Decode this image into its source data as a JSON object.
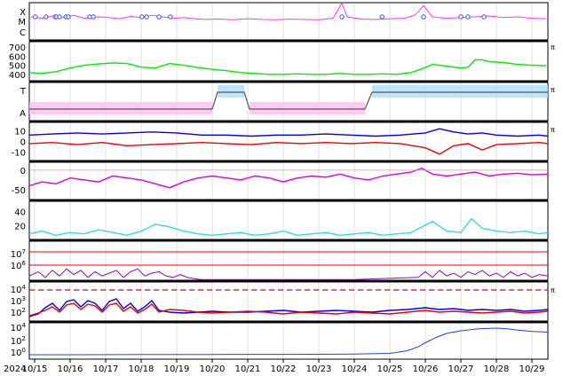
{
  "chart_data": [
    {
      "type": "line",
      "panel": "xray-flare-class",
      "yticks": [
        "X",
        "M",
        "C"
      ],
      "series": [
        {
          "color": "#ff33ff",
          "x": [
            14.9,
            15.2,
            15.5,
            15.8,
            16.1,
            16.4,
            16.8,
            17.1,
            17.4,
            17.7,
            18.0,
            18.3,
            18.6,
            18.9,
            19.2,
            19.5,
            19.8,
            20.2,
            20.6,
            21.0,
            21.4,
            21.8,
            22.2,
            22.6,
            23.0,
            23.4,
            23.65,
            23.8,
            24.2,
            24.6,
            25.0,
            25.4,
            25.7,
            25.95,
            26.2,
            26.6,
            27.0,
            27.4,
            27.8,
            28.2,
            28.6,
            29.0,
            29.4
          ],
          "y": [
            0.62,
            0.58,
            0.64,
            0.6,
            0.66,
            0.58,
            0.62,
            0.6,
            0.57,
            0.63,
            0.6,
            0.66,
            0.62,
            0.58,
            0.6,
            0.57,
            0.55,
            0.56,
            0.54,
            0.57,
            0.55,
            0.54,
            0.56,
            0.55,
            0.54,
            0.58,
            0.98,
            0.62,
            0.56,
            0.55,
            0.57,
            0.58,
            0.66,
            0.92,
            0.62,
            0.58,
            0.6,
            0.62,
            0.64,
            0.6,
            0.62,
            0.58,
            0.57
          ]
        }
      ],
      "flare_markers": [
        15.02,
        15.32,
        15.58,
        15.62,
        15.7,
        15.88,
        15.95,
        16.55,
        16.65,
        18.02,
        18.15,
        18.5,
        18.82,
        23.65,
        24.78,
        25.95,
        27.0,
        27.2,
        27.65
      ]
    },
    {
      "type": "line",
      "panel": "solar-wind-speed",
      "yticks": [
        "700",
        "600",
        "500",
        "400"
      ],
      "ylim": [
        330,
        760
      ],
      "series": [
        {
          "color": "#00ee00",
          "x": [
            14.85,
            15.2,
            15.6,
            16.0,
            16.4,
            16.8,
            17.2,
            17.6,
            18.0,
            18.4,
            18.8,
            19.2,
            19.6,
            20.0,
            20.4,
            20.8,
            21.2,
            21.6,
            22.0,
            22.4,
            22.8,
            23.2,
            23.6,
            24.0,
            24.4,
            24.8,
            25.2,
            25.6,
            25.9,
            26.2,
            26.6,
            27.0,
            27.2,
            27.4,
            27.6,
            27.8,
            28.2,
            28.6,
            29.0,
            29.4
          ],
          "y": [
            420,
            410,
            430,
            470,
            500,
            515,
            525,
            520,
            480,
            470,
            520,
            500,
            475,
            455,
            440,
            420,
            410,
            400,
            400,
            405,
            400,
            400,
            410,
            400,
            400,
            405,
            400,
            420,
            460,
            510,
            490,
            470,
            480,
            560,
            560,
            540,
            530,
            510,
            500,
            495
          ]
        }
      ]
    },
    {
      "type": "line",
      "panel": "imf-sector",
      "yticks": [
        "T",
        "A"
      ],
      "series": [
        {
          "color": "#555555",
          "x": [
            14.85,
            20.0,
            20.15,
            20.9,
            21.05,
            24.3,
            24.5,
            29.45
          ],
          "y": [
            0,
            0,
            1,
            1,
            0,
            0,
            1,
            1
          ]
        }
      ]
    },
    {
      "type": "line",
      "panel": "imf-components",
      "yticks": [
        "10",
        "0",
        "-10"
      ],
      "ylim": [
        -18,
        18
      ],
      "series": [
        {
          "color": "#0000ee",
          "x": [
            14.85,
            15.5,
            16.2,
            16.9,
            17.6,
            18.3,
            19.0,
            19.7,
            20.4,
            21.1,
            21.8,
            22.5,
            23.2,
            23.9,
            24.6,
            25.3,
            26.0,
            26.4,
            26.8,
            27.2,
            27.6,
            28.0,
            28.6,
            29.2,
            29.45
          ],
          "y": [
            6,
            7,
            8,
            7,
            8,
            9,
            8,
            6,
            6,
            5,
            6,
            6,
            7,
            6,
            5,
            6,
            8,
            12,
            9,
            7,
            8,
            6,
            5,
            6,
            5
          ]
        },
        {
          "color": "#ee0000",
          "x": [
            14.85,
            15.5,
            16.2,
            16.9,
            17.6,
            18.3,
            19.0,
            19.7,
            20.4,
            21.1,
            21.8,
            22.5,
            23.2,
            23.9,
            24.6,
            25.3,
            26.0,
            26.4,
            26.8,
            27.2,
            27.6,
            28.0,
            28.6,
            29.2,
            29.45
          ],
          "y": [
            -2,
            -1,
            -3,
            -1,
            -4,
            -3,
            -2,
            -1,
            -2,
            -3,
            -1,
            -2,
            -1,
            -2,
            -1,
            -2,
            -6,
            -12,
            -4,
            -2,
            -8,
            -3,
            -2,
            -1,
            -2
          ]
        }
      ]
    },
    {
      "type": "line",
      "panel": "dst-index",
      "yticks": [
        "0",
        "-50"
      ],
      "ylim": [
        -75,
        20
      ],
      "series": [
        {
          "color": "#dd00dd",
          "x": [
            14.85,
            15.2,
            15.6,
            16.0,
            16.4,
            16.8,
            17.2,
            17.6,
            18.0,
            18.4,
            18.8,
            19.2,
            19.6,
            20.0,
            20.4,
            20.8,
            21.2,
            21.6,
            22.0,
            22.4,
            22.8,
            23.2,
            23.6,
            24.0,
            24.4,
            24.8,
            25.2,
            25.6,
            25.9,
            26.2,
            26.6,
            27.0,
            27.4,
            27.8,
            28.2,
            28.6,
            29.0,
            29.45
          ],
          "y": [
            -40,
            -30,
            -35,
            -20,
            -25,
            -30,
            -15,
            -20,
            -25,
            -35,
            -45,
            -30,
            -20,
            -15,
            -20,
            -25,
            -15,
            -20,
            -30,
            -20,
            -15,
            -18,
            -10,
            -20,
            -25,
            -15,
            -10,
            -5,
            5,
            -10,
            -15,
            -10,
            -5,
            -15,
            -10,
            -8,
            -12,
            -10
          ]
        }
      ]
    },
    {
      "type": "line",
      "panel": "kp-index",
      "yticks": [
        "40",
        "20"
      ],
      "ylim": [
        0,
        55
      ],
      "series": [
        {
          "color": "#33dddd",
          "x": [
            14.85,
            15.2,
            15.6,
            16.0,
            16.4,
            16.8,
            17.2,
            17.6,
            18.0,
            18.4,
            18.8,
            19.2,
            19.6,
            20.0,
            20.4,
            20.8,
            21.2,
            21.6,
            22.0,
            22.4,
            22.8,
            23.2,
            23.6,
            24.0,
            24.4,
            24.8,
            25.2,
            25.6,
            25.9,
            26.2,
            26.6,
            27.0,
            27.3,
            27.6,
            28.0,
            28.4,
            28.8,
            29.2,
            29.45
          ],
          "y": [
            8,
            12,
            6,
            10,
            8,
            14,
            10,
            6,
            12,
            22,
            18,
            12,
            8,
            6,
            8,
            10,
            6,
            8,
            12,
            6,
            8,
            10,
            6,
            8,
            10,
            6,
            8,
            10,
            18,
            26,
            12,
            10,
            30,
            16,
            12,
            10,
            12,
            8,
            10
          ]
        }
      ]
    },
    {
      "type": "line",
      "panel": "proton-flux",
      "yticks": [
        "10^7",
        "10^6"
      ],
      "series": [
        {
          "color": "#9900cc",
          "x": [
            14.85,
            15.1,
            15.3,
            15.5,
            15.7,
            15.9,
            16.1,
            16.3,
            16.5,
            16.7,
            16.9,
            17.1,
            17.3,
            17.5,
            17.7,
            17.9,
            18.1,
            18.3,
            18.5,
            18.7,
            18.9,
            19.1,
            19.3,
            19.5,
            19.7,
            20.0,
            22.0,
            24.0,
            25.8,
            26.0,
            26.2,
            26.4,
            26.6,
            26.8,
            27.0,
            27.2,
            27.4,
            27.6,
            27.8,
            28.0,
            28.2,
            28.4,
            28.6,
            28.8,
            29.0,
            29.2,
            29.45
          ],
          "y": [
            0.3,
            0.6,
            0.2,
            0.7,
            0.3,
            0.8,
            0.4,
            0.7,
            0.2,
            0.6,
            0.3,
            0.5,
            0.7,
            0.2,
            0.6,
            0.8,
            0.3,
            0.5,
            0.6,
            0.3,
            0.2,
            0.4,
            0.2,
            0.1,
            0.05,
            0.05,
            0.05,
            0.05,
            0.2,
            0.6,
            0.2,
            0.7,
            0.3,
            0.5,
            0.2,
            0.6,
            0.4,
            0.7,
            0.3,
            0.5,
            0.2,
            0.6,
            0.3,
            0.5,
            0.2,
            0.4,
            0.3
          ]
        }
      ]
    },
    {
      "type": "line",
      "panel": "electron-flux",
      "yticks": [
        "10^4",
        "10^3",
        "10^2"
      ],
      "series": [
        {
          "color": "#0000ee",
          "x": [
            14.85,
            15.1,
            15.3,
            15.5,
            15.7,
            15.9,
            16.1,
            16.3,
            16.5,
            16.7,
            16.9,
            17.1,
            17.3,
            17.5,
            17.7,
            17.9,
            18.1,
            18.3,
            18.5,
            18.8,
            19.2,
            19.6,
            20.0,
            20.5,
            21.0,
            21.5,
            22.0,
            22.5,
            23.0,
            23.5,
            24.0,
            24.5,
            25.0,
            25.5,
            26.0,
            26.4,
            26.8,
            27.2,
            27.6,
            28.0,
            28.4,
            28.8,
            29.2,
            29.45
          ],
          "y": [
            0.5,
            0.8,
            1.5,
            2.0,
            1.2,
            2.2,
            2.4,
            1.6,
            2.3,
            2.0,
            1.2,
            2.2,
            2.5,
            1.4,
            2.0,
            1.1,
            1.6,
            2.3,
            1.2,
            1.0,
            0.9,
            1.0,
            1.1,
            1.0,
            1.0,
            1.1,
            1.2,
            1.0,
            1.1,
            1.2,
            1.1,
            1.0,
            1.2,
            1.3,
            1.5,
            1.3,
            1.4,
            1.2,
            1.3,
            1.2,
            1.3,
            1.1,
            1.2,
            1.3
          ]
        },
        {
          "color": "#ee0000",
          "x": [
            14.85,
            15.1,
            15.3,
            15.5,
            15.7,
            15.9,
            16.1,
            16.3,
            16.5,
            16.7,
            16.9,
            17.1,
            17.3,
            17.5,
            17.7,
            17.9,
            18.1,
            18.3,
            18.5,
            18.8,
            19.2,
            19.6,
            20.0,
            20.5,
            21.0,
            21.5,
            22.0,
            22.5,
            23.0,
            23.5,
            24.0,
            24.5,
            25.0,
            25.5,
            26.0,
            26.4,
            26.8,
            27.2,
            27.6,
            28.0,
            28.4,
            28.8,
            29.2,
            29.45
          ],
          "y": [
            0.6,
            0.9,
            1.2,
            1.6,
            1.0,
            1.8,
            2.0,
            1.3,
            1.9,
            1.7,
            1.0,
            1.8,
            2.0,
            1.1,
            1.6,
            0.9,
            1.3,
            1.9,
            1.0,
            1.3,
            1.2,
            1.0,
            0.9,
            1.0,
            1.1,
            1.0,
            0.8,
            1.0,
            0.9,
            0.8,
            1.0,
            0.9,
            0.8,
            1.0,
            1.2,
            1.0,
            1.1,
            1.0,
            0.9,
            1.0,
            1.1,
            0.9,
            1.0,
            1.1
          ]
        }
      ]
    },
    {
      "type": "line",
      "panel": "fluence",
      "yticks": [
        "10^4",
        "10^2",
        "10^0"
      ],
      "series": [
        {
          "color": "#2244dd",
          "x": [
            14.85,
            16.0,
            18.0,
            20.0,
            22.0,
            24.0,
            25.0,
            25.5,
            25.8,
            26.0,
            26.3,
            26.6,
            27.0,
            27.5,
            28.0,
            28.3,
            28.6,
            29.0,
            29.45
          ],
          "y": [
            0.0,
            0.0,
            0.02,
            0.02,
            0.03,
            0.05,
            0.1,
            0.3,
            0.6,
            0.9,
            1.3,
            1.6,
            1.8,
            1.95,
            2.0,
            1.95,
            1.85,
            1.75,
            1.7
          ]
        }
      ]
    },
    {
      "type": "axis",
      "year_label": "2024",
      "xtick_labels": [
        "10/15",
        "10/16",
        "10/17",
        "10/18",
        "10/19",
        "10/20",
        "10/21",
        "10/22",
        "10/23",
        "10/24",
        "10/25",
        "10/26",
        "10/27",
        "10/28",
        "10/29"
      ]
    }
  ]
}
